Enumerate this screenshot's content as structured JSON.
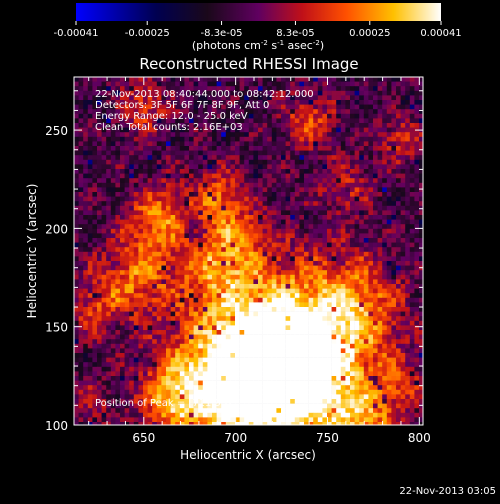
{
  "colorbar": {
    "tick_labels": [
      "-0.00041",
      "-0.00025",
      "-8.3e-05",
      "8.3e-05",
      "0.00025",
      "0.00041"
    ],
    "tick_values": [
      -0.00041,
      -0.00025,
      -8.3e-05,
      8.3e-05,
      0.00025,
      0.00041
    ],
    "range": [
      -0.00041,
      0.00041
    ],
    "unit_main": "(photons cm",
    "unit_exp1": "-2",
    "unit_mid": " s",
    "unit_exp2": "-1",
    "unit_tail": " asec",
    "unit_exp3": "-2",
    "unit_close": ")",
    "colors": [
      "#0000ff",
      "#000040",
      "#200820",
      "#700070",
      "#e01010",
      "#ff8000",
      "#ffe000",
      "#ffffff"
    ]
  },
  "chart_data": {
    "type": "heatmap",
    "title": "Reconstructed RHESSI Image",
    "xlabel": "Heliocentric X (arcsec)",
    "ylabel": "Heliocentric Y (arcsec)",
    "xlim": [
      612,
      802
    ],
    "ylim": [
      100,
      277
    ],
    "x_ticks": [
      650,
      700,
      750,
      800
    ],
    "y_ticks": [
      100,
      150,
      200,
      250
    ],
    "annotations": [
      "22-Nov-2013 08:40:44.000 to 08:42:12.000",
      "Detectors: 3F 5F 6F 7F 8F 9F, Att 0",
      "Energy Range: 12.0 - 25.0 keV",
      "Clean     Total counts: 2.16E+03"
    ],
    "peak_label": "Position of Peak = [711,95]",
    "peak": [
      711,
      95
    ]
  },
  "footer": {
    "timestamp": "22-Nov-2013 03:05"
  }
}
